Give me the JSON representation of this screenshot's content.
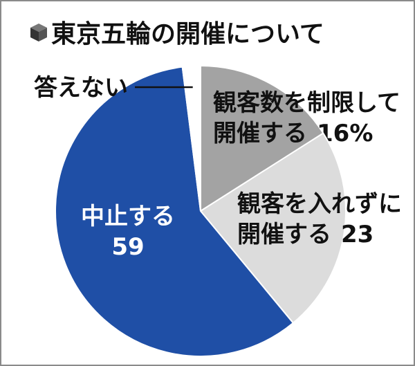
{
  "chart_data": {
    "type": "pie",
    "title": "東京五輪の開催について",
    "categories": [
      "観客数を制限して\n開催する",
      "観客を入れずに\n開催する",
      "中止する",
      "答えない"
    ],
    "values": [
      16,
      23,
      59,
      2
    ],
    "value_labels": [
      "16%",
      "23",
      "59",
      null
    ],
    "colors": [
      "#a3a3a3",
      "#dcdcdc",
      "#1f4fa6",
      "#ffffff"
    ]
  }
}
